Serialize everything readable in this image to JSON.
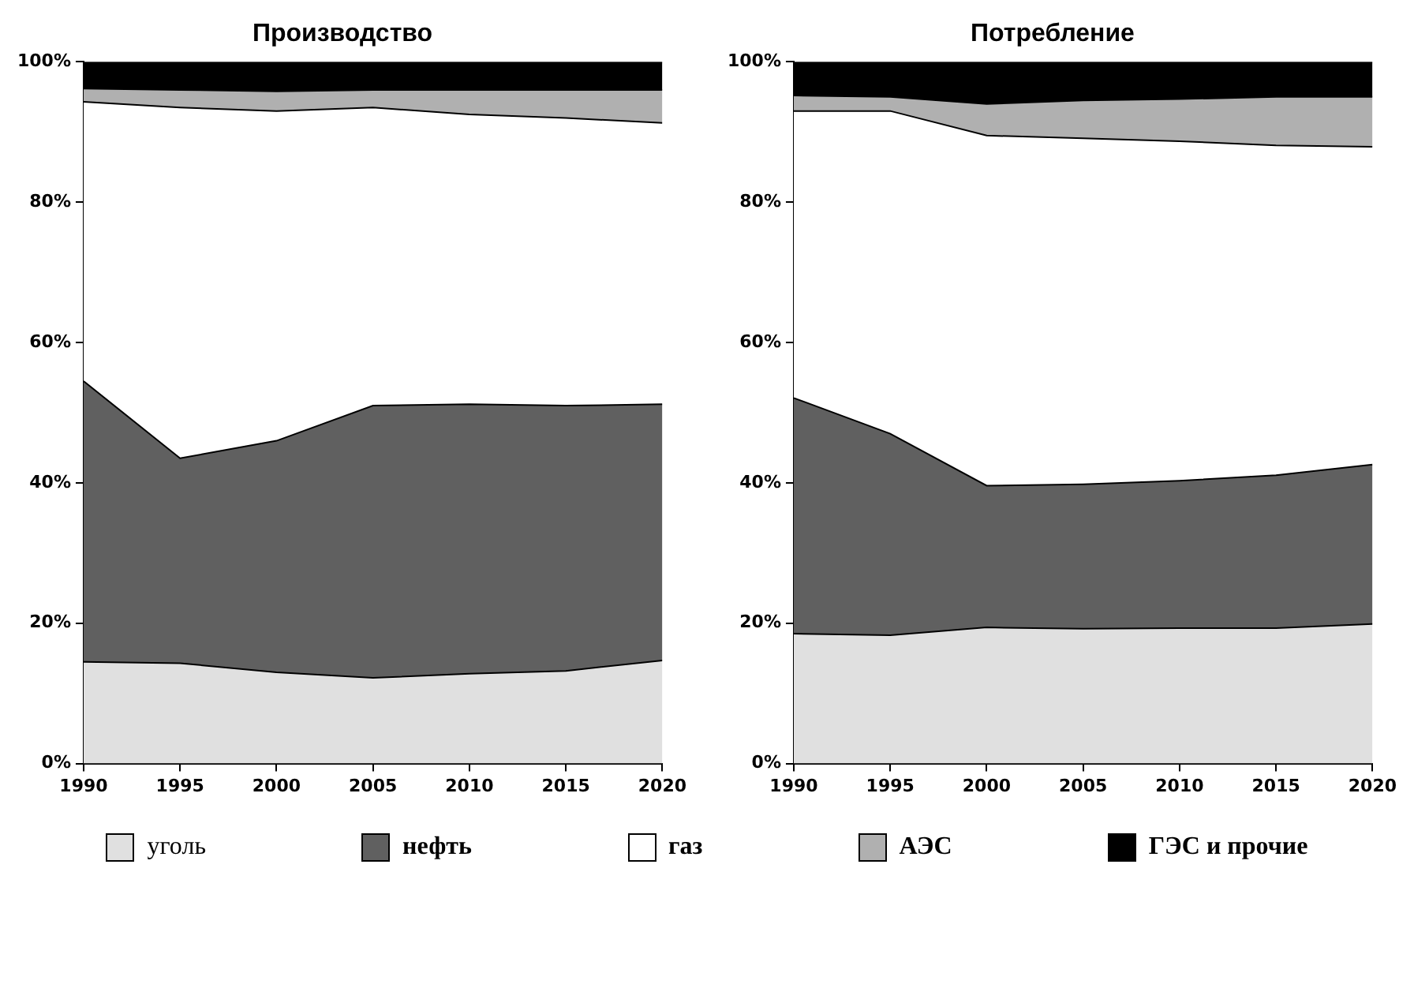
{
  "chart_data": [
    {
      "type": "area",
      "title": "Производство",
      "stacked": true,
      "x": [
        1990,
        1995,
        2000,
        2005,
        2010,
        2015,
        2020
      ],
      "xlim": [
        1990,
        2020
      ],
      "xticks": [
        1990,
        1995,
        2000,
        2005,
        2010,
        2015,
        2020
      ],
      "ylim": [
        0,
        100
      ],
      "yticks": [
        {
          "value": 0,
          "label": "0%"
        },
        {
          "value": 20,
          "label": "20%"
        },
        {
          "value": 40,
          "label": "40%"
        },
        {
          "value": 60,
          "label": "60%"
        },
        {
          "value": 80,
          "label": "80%"
        },
        {
          "value": 100,
          "label": "100%"
        }
      ],
      "grid": false,
      "legend": "bottom",
      "series": [
        {
          "name": "уголь",
          "color": "#e0e0e0",
          "values": [
            14.5,
            14.3,
            13,
            12.2,
            12.8,
            13.2,
            14.7
          ]
        },
        {
          "name": "нефть",
          "color": "#606060",
          "values": [
            40,
            29.2,
            33,
            38.8,
            38.4,
            37.8,
            36.5
          ]
        },
        {
          "name": "газ",
          "color": "#ffffff",
          "values": [
            39.8,
            50,
            47,
            42.5,
            41.3,
            41,
            40.1
          ]
        },
        {
          "name": "АЭС",
          "color": "#b0b0b0",
          "values": [
            1.9,
            2.5,
            2.8,
            2.5,
            3.5,
            4,
            4.7
          ]
        },
        {
          "name": "ГЭС и прочие",
          "color": "#000000",
          "values": [
            3.8,
            4,
            4.2,
            4,
            4,
            4,
            4
          ]
        }
      ]
    },
    {
      "type": "area",
      "title": "Потребление",
      "stacked": true,
      "x": [
        1990,
        1995,
        2000,
        2005,
        2010,
        2015,
        2020
      ],
      "xlim": [
        1990,
        2020
      ],
      "xticks": [
        1990,
        1995,
        2000,
        2005,
        2010,
        2015,
        2020
      ],
      "ylim": [
        0,
        100
      ],
      "yticks": [
        {
          "value": 0,
          "label": "0%"
        },
        {
          "value": 20,
          "label": "20%"
        },
        {
          "value": 40,
          "label": "40%"
        },
        {
          "value": 60,
          "label": "60%"
        },
        {
          "value": 80,
          "label": "80%"
        },
        {
          "value": 100,
          "label": "100%"
        }
      ],
      "grid": false,
      "legend": "bottom",
      "series": [
        {
          "color": "#e0e0e0",
          "values": [
            18.5,
            18.3,
            19.4,
            19.2,
            19.3,
            19.3,
            19.9
          ]
        },
        {
          "color": "#606060",
          "values": [
            33.6,
            28.7,
            20.2,
            20.6,
            21,
            21.8,
            22.7
          ]
        },
        {
          "color": "#ffffff",
          "values": [
            40.9,
            46,
            49.9,
            49.3,
            48.4,
            47,
            45.3
          ]
        },
        {
          "color": "#b0b0b0",
          "values": [
            2.2,
            2,
            4.5,
            5.4,
            6,
            6.9,
            7.1
          ]
        },
        {
          "color": "#000000",
          "values": [
            4.8,
            5,
            6,
            5.5,
            5.3,
            5,
            5
          ]
        }
      ]
    }
  ]
}
